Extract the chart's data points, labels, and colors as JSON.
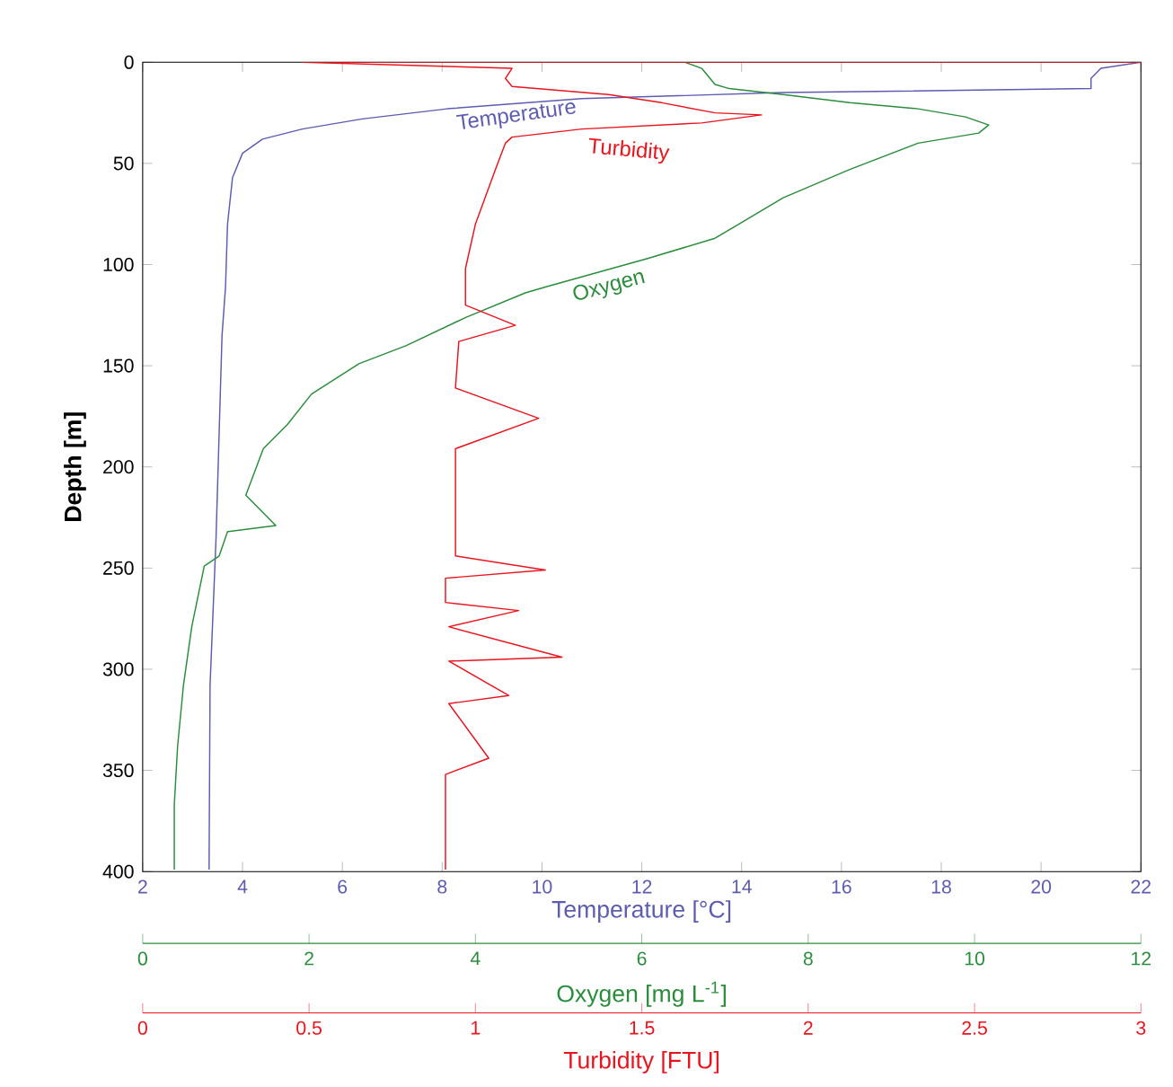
{
  "chart_data": [
    {
      "type": "line",
      "xlabel": "Temperature [°C]",
      "ylabel": "Depth [m]",
      "xlim": [
        2,
        22
      ],
      "xticks": [
        2,
        4,
        6,
        8,
        10,
        12,
        14,
        16,
        18,
        20,
        22
      ],
      "ylim": [
        400,
        0
      ],
      "yticks": [
        0,
        50,
        100,
        150,
        200,
        250,
        300,
        350,
        400
      ],
      "series": [
        {
          "name": "Temperature",
          "color": "#5c5cb0",
          "x": [
            22,
            21.2,
            21.0,
            21.0,
            14.8,
            10.8,
            8.1,
            6.4,
            5.2,
            4.4,
            4.0,
            3.8,
            3.7,
            3.66,
            3.59,
            3.47,
            3.35,
            3.33
          ],
          "values": [
            0,
            3,
            8,
            13,
            15,
            18,
            23,
            28,
            33,
            38,
            45,
            57,
            80,
            111,
            135,
            235,
            308,
            399
          ]
        }
      ]
    },
    {
      "type": "line",
      "xlabel": "Oxygen [mg L$^{-1}$]",
      "xlim": [
        0,
        12
      ],
      "xticks": [
        0,
        2,
        4,
        6,
        8,
        10,
        12
      ],
      "ylim": [
        400,
        0
      ],
      "tick_labels": "x",
      "series": [
        {
          "name": "Oxygen",
          "color": "#2a8c3c",
          "x": [
            6.52,
            6.72,
            6.88,
            7.05,
            7.7,
            8.5,
            9.32,
            9.89,
            10.17,
            10.05,
            9.32,
            8.5,
            7.7,
            6.88,
            6.07,
            4.85,
            4.6,
            3.89,
            3.17,
            2.6,
            2.03,
            1.74,
            1.45,
            1.24,
            1.6,
            1.02,
            0.92,
            0.74,
            0.59,
            0.49,
            0.42,
            0.38,
            0.38
          ],
          "values": [
            0,
            3,
            11,
            13,
            16,
            20,
            23,
            27,
            31,
            35,
            40,
            53,
            67,
            87,
            97,
            111,
            114,
            126,
            140,
            149,
            164,
            179,
            191,
            214,
            229,
            232,
            244,
            249,
            279,
            308,
            338,
            367,
            399
          ]
        }
      ]
    },
    {
      "type": "line",
      "xlabel": "Turbidity [FTU]",
      "xlim": [
        0,
        3
      ],
      "xticks": [
        0,
        0.5,
        1,
        1.5,
        2,
        2.5,
        3
      ],
      "ylim": [
        400,
        0
      ],
      "tick_labels": "x",
      "series": [
        {
          "name": "Turbidity",
          "color": "#e8141e",
          "x": [
            3.0,
            0.48,
            1.11,
            1.09,
            1.11,
            1.4,
            1.56,
            1.72,
            1.86,
            1.68,
            1.32,
            1.11,
            1.09,
            1.06,
            1.0,
            0.97,
            0.97,
            1.12,
            0.95,
            0.94,
            1.19,
            0.94,
            0.94,
            1.21,
            0.91,
            0.91,
            1.13,
            0.92,
            1.26,
            0.92,
            1.1,
            0.92,
            1.04,
            0.91,
            0.91
          ],
          "values": [
            0,
            0,
            3,
            8,
            12,
            16,
            20,
            25,
            26,
            30,
            33,
            37,
            40,
            53,
            80,
            102,
            120,
            130,
            138,
            161,
            176,
            191,
            244,
            251,
            255,
            267,
            271,
            279,
            294,
            296,
            313,
            317,
            344,
            352,
            399
          ]
        }
      ]
    }
  ]
}
